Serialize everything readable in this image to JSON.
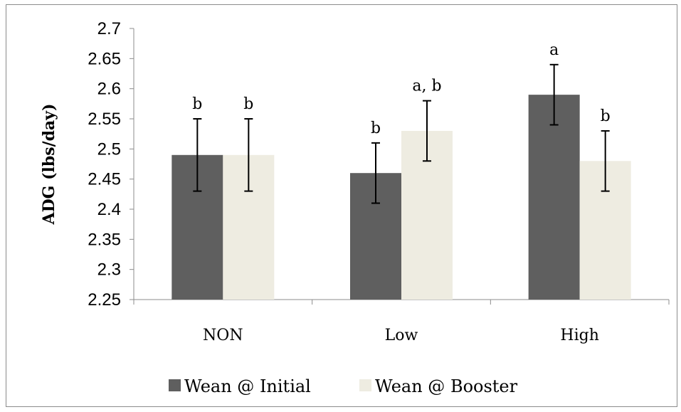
{
  "chart_data": {
    "type": "bar",
    "title": "",
    "xlabel": "",
    "ylabel": "ADG (lbs/day)",
    "ylim": [
      2.25,
      2.7
    ],
    "y_ticks": [
      "2.25",
      "2.3",
      "2.35",
      "2.4",
      "2.45",
      "2.5",
      "2.55",
      "2.6",
      "2.65",
      "2.7"
    ],
    "categories": [
      "NON",
      "Low",
      "High"
    ],
    "series": [
      {
        "name": "Wean @ Initial",
        "color": "#5f5f5f",
        "values": [
          2.49,
          2.46,
          2.59
        ],
        "error_low": [
          2.43,
          2.41,
          2.54
        ],
        "error_high": [
          2.55,
          2.51,
          2.64
        ],
        "annotations": [
          "b",
          "b",
          "a"
        ]
      },
      {
        "name": "Wean @ Booster",
        "color": "#eeece1",
        "values": [
          2.49,
          2.53,
          2.48
        ],
        "error_low": [
          2.43,
          2.48,
          2.43
        ],
        "error_high": [
          2.55,
          2.58,
          2.53
        ],
        "annotations": [
          "b",
          "a, b",
          "b"
        ]
      }
    ],
    "legend_position": "bottom",
    "grid": false
  }
}
